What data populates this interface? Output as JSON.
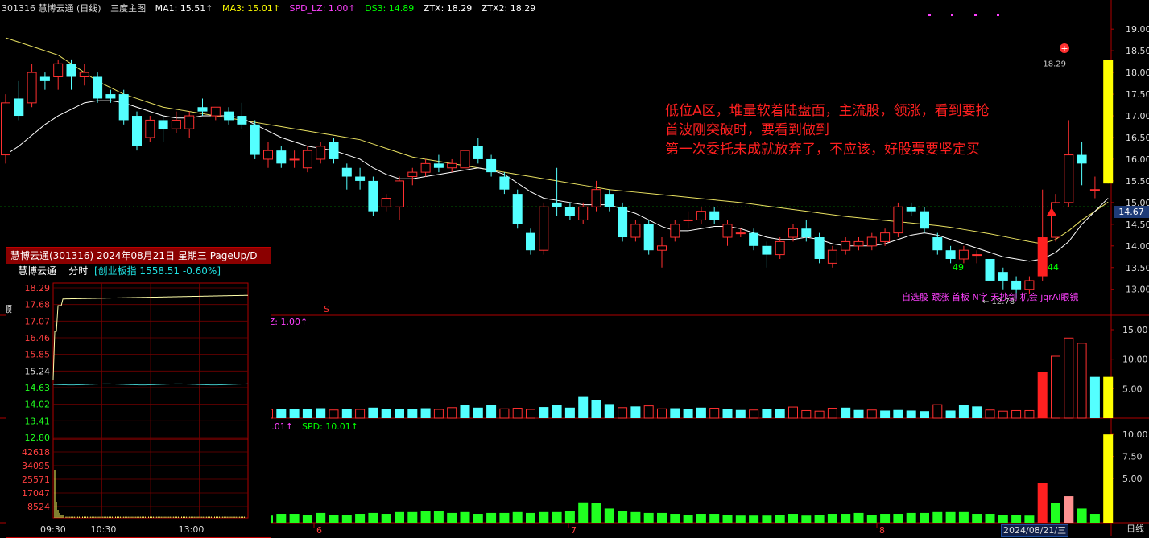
{
  "header": {
    "code_name": "301316 慧博云通 (日线)",
    "main_label": "三度主图",
    "items": [
      {
        "text": "MA1: 15.51↑",
        "color": "#ffffff"
      },
      {
        "text": "MA3: 15.01↑",
        "color": "#ffff00"
      },
      {
        "text": "SPD_LZ: 1.00↑",
        "color": "#ff40ff"
      },
      {
        "text": "DS3: 14.89",
        "color": "#00ff00"
      },
      {
        "text": "ZTX: 18.29",
        "color": "#ffffff"
      },
      {
        "text": "ZTX2: 18.29",
        "color": "#ffffff"
      }
    ]
  },
  "annotation": {
    "lines": [
      "低位A区，堆量软着陆盘面，主流股，领涨，看到要抢",
      "首波刚突破时，要看到做到",
      "第一次委托未成就放弃了，不应该，好股票要坚定买"
    ],
    "color": "#ff2020"
  },
  "price_labels": {
    "high_marker": "18.29",
    "low_marker": "12.78",
    "current": "14.67",
    "count_left": "49",
    "count_right": "44",
    "signal_text": "自选股 跟涨 首板 N字 天抄剑 机会 jqrAI眼镜",
    "s_marker": "S"
  },
  "panel2_label": "SPD_LZ: 1.00↑",
  "panel3_labels": {
    "left": "度: 20.01↑",
    "right": "SPD: 10.01↑"
  },
  "x_axis": {
    "labels": [
      "6",
      "7",
      "8"
    ],
    "current_date": "2024/08/21/三",
    "period": "日线"
  },
  "popup": {
    "title": "慧博云通(301316) 2024年08月21日 星期三 PageUp/D",
    "name": "慧博云通",
    "mode": "分时",
    "index_text": "[创业板指 1558.51 -0.60%]",
    "price_ticks": [
      "18.29",
      "17.68",
      "17.07",
      "16.46",
      "15.85",
      "15.24",
      "14.63",
      "14.02",
      "13.41",
      "12.80"
    ],
    "volume_ticks": [
      "42618",
      "34095",
      "25571",
      "17047",
      "8524"
    ],
    "time_labels": [
      "09:30",
      "10:30",
      "13:00"
    ],
    "side_label": "顺"
  },
  "chart_data": [
    {
      "type": "candlestick",
      "panel": "price",
      "y_ticks": [
        13.0,
        13.5,
        14.0,
        14.5,
        15.0,
        15.5,
        16.0,
        16.5,
        17.0,
        17.5,
        18.0,
        18.5,
        19.0
      ],
      "ylim": [
        12.55,
        19.3
      ],
      "candles": [
        {
          "o": 16.1,
          "c": 17.3,
          "h": 17.5,
          "l": 15.9
        },
        {
          "o": 17.4,
          "c": 17.0,
          "h": 17.8,
          "l": 16.9
        },
        {
          "o": 17.3,
          "c": 18.0,
          "h": 18.2,
          "l": 17.2
        },
        {
          "o": 17.9,
          "c": 17.8,
          "h": 18.0,
          "l": 17.6
        },
        {
          "o": 17.9,
          "c": 18.2,
          "h": 18.3,
          "l": 17.6
        },
        {
          "o": 18.2,
          "c": 17.9,
          "h": 18.3,
          "l": 17.6
        },
        {
          "o": 17.9,
          "c": 18.0,
          "h": 18.2,
          "l": 17.7
        },
        {
          "o": 17.9,
          "c": 17.4,
          "h": 18.0,
          "l": 17.3
        },
        {
          "o": 17.5,
          "c": 17.4,
          "h": 17.6,
          "l": 17.3
        },
        {
          "o": 17.5,
          "c": 16.9,
          "h": 17.6,
          "l": 16.8
        },
        {
          "o": 17.0,
          "c": 16.3,
          "h": 17.1,
          "l": 16.2
        },
        {
          "o": 16.5,
          "c": 16.9,
          "h": 17.0,
          "l": 16.4
        },
        {
          "o": 16.9,
          "c": 16.7,
          "h": 17.0,
          "l": 16.4
        },
        {
          "o": 16.7,
          "c": 16.9,
          "h": 17.1,
          "l": 16.6
        },
        {
          "o": 16.7,
          "c": 17.0,
          "h": 17.1,
          "l": 16.5
        },
        {
          "o": 17.2,
          "c": 17.1,
          "h": 17.4,
          "l": 17.0
        },
        {
          "o": 17.0,
          "c": 17.2,
          "h": 17.2,
          "l": 16.9
        },
        {
          "o": 17.1,
          "c": 16.9,
          "h": 17.2,
          "l": 16.8
        },
        {
          "o": 17.0,
          "c": 16.8,
          "h": 17.3,
          "l": 16.7
        },
        {
          "o": 16.8,
          "c": 16.1,
          "h": 16.9,
          "l": 16.0
        },
        {
          "o": 16.0,
          "c": 16.2,
          "h": 16.4,
          "l": 15.8
        },
        {
          "o": 16.2,
          "c": 15.9,
          "h": 16.3,
          "l": 15.8
        },
        {
          "o": 16.0,
          "c": 16.0,
          "h": 16.2,
          "l": 15.8
        },
        {
          "o": 15.8,
          "c": 16.2,
          "h": 16.3,
          "l": 15.7
        },
        {
          "o": 16.0,
          "c": 16.3,
          "h": 16.4,
          "l": 15.9
        },
        {
          "o": 16.4,
          "c": 16.0,
          "h": 16.5,
          "l": 15.9
        },
        {
          "o": 15.8,
          "c": 15.6,
          "h": 15.9,
          "l": 15.3
        },
        {
          "o": 15.6,
          "c": 15.5,
          "h": 15.8,
          "l": 15.3
        },
        {
          "o": 15.5,
          "c": 14.8,
          "h": 15.6,
          "l": 14.7
        },
        {
          "o": 14.9,
          "c": 15.1,
          "h": 15.2,
          "l": 14.8
        },
        {
          "o": 14.9,
          "c": 15.5,
          "h": 15.6,
          "l": 14.6
        },
        {
          "o": 15.6,
          "c": 15.7,
          "h": 15.8,
          "l": 15.4
        },
        {
          "o": 15.7,
          "c": 15.9,
          "h": 16.0,
          "l": 15.6
        },
        {
          "o": 15.9,
          "c": 15.8,
          "h": 16.1,
          "l": 15.7
        },
        {
          "o": 15.8,
          "c": 15.9,
          "h": 16.0,
          "l": 15.7
        },
        {
          "o": 15.8,
          "c": 16.2,
          "h": 16.4,
          "l": 15.7
        },
        {
          "o": 16.3,
          "c": 16.0,
          "h": 16.5,
          "l": 15.9
        },
        {
          "o": 16.0,
          "c": 15.7,
          "h": 16.1,
          "l": 15.6
        },
        {
          "o": 15.6,
          "c": 15.3,
          "h": 15.7,
          "l": 15.2
        },
        {
          "o": 15.2,
          "c": 14.5,
          "h": 15.3,
          "l": 14.4
        },
        {
          "o": 14.3,
          "c": 13.9,
          "h": 14.4,
          "l": 13.8
        },
        {
          "o": 13.9,
          "c": 14.9,
          "h": 15.0,
          "l": 13.8
        },
        {
          "o": 15.0,
          "c": 14.9,
          "h": 15.8,
          "l": 14.7
        },
        {
          "o": 14.9,
          "c": 14.7,
          "h": 15.0,
          "l": 14.6
        },
        {
          "o": 14.6,
          "c": 14.9,
          "h": 15.0,
          "l": 14.5
        },
        {
          "o": 14.9,
          "c": 15.3,
          "h": 15.5,
          "l": 14.8
        },
        {
          "o": 15.2,
          "c": 14.9,
          "h": 15.3,
          "l": 14.8
        },
        {
          "o": 14.9,
          "c": 14.2,
          "h": 15.0,
          "l": 14.1
        },
        {
          "o": 14.2,
          "c": 14.5,
          "h": 14.6,
          "l": 14.1
        },
        {
          "o": 14.5,
          "c": 13.9,
          "h": 14.6,
          "l": 13.8
        },
        {
          "o": 13.9,
          "c": 14.0,
          "h": 14.2,
          "l": 13.5
        },
        {
          "o": 14.2,
          "c": 14.5,
          "h": 14.6,
          "l": 14.1
        },
        {
          "o": 14.6,
          "c": 14.6,
          "h": 14.8,
          "l": 14.4
        },
        {
          "o": 14.6,
          "c": 14.8,
          "h": 14.9,
          "l": 14.5
        },
        {
          "o": 14.8,
          "c": 14.6,
          "h": 14.9,
          "l": 14.5
        },
        {
          "o": 14.2,
          "c": 14.5,
          "h": 14.6,
          "l": 14.0
        },
        {
          "o": 14.3,
          "c": 14.3,
          "h": 14.4,
          "l": 14.2
        },
        {
          "o": 14.3,
          "c": 14.0,
          "h": 14.4,
          "l": 13.9
        },
        {
          "o": 14.0,
          "c": 13.8,
          "h": 14.1,
          "l": 13.5
        },
        {
          "o": 13.8,
          "c": 14.1,
          "h": 14.2,
          "l": 13.7
        },
        {
          "o": 14.2,
          "c": 14.4,
          "h": 14.5,
          "l": 14.1
        },
        {
          "o": 14.4,
          "c": 14.2,
          "h": 14.6,
          "l": 14.1
        },
        {
          "o": 14.2,
          "c": 13.7,
          "h": 14.3,
          "l": 13.6
        },
        {
          "o": 13.6,
          "c": 13.9,
          "h": 14.0,
          "l": 13.5
        },
        {
          "o": 13.9,
          "c": 14.1,
          "h": 14.2,
          "l": 13.8
        },
        {
          "o": 14.0,
          "c": 14.1,
          "h": 14.2,
          "l": 13.9
        },
        {
          "o": 14.0,
          "c": 14.2,
          "h": 14.3,
          "l": 13.9
        },
        {
          "o": 14.1,
          "c": 14.3,
          "h": 14.4,
          "l": 14.0
        },
        {
          "o": 14.3,
          "c": 14.9,
          "h": 15.0,
          "l": 14.2
        },
        {
          "o": 14.9,
          "c": 14.8,
          "h": 15.0,
          "l": 14.7
        },
        {
          "o": 14.8,
          "c": 14.4,
          "h": 14.9,
          "l": 14.3
        },
        {
          "o": 14.2,
          "c": 13.9,
          "h": 14.3,
          "l": 13.8
        },
        {
          "o": 13.9,
          "c": 13.7,
          "h": 14.0,
          "l": 13.6
        },
        {
          "o": 13.7,
          "c": 13.9,
          "h": 14.0,
          "l": 13.6
        },
        {
          "o": 13.8,
          "c": 13.8,
          "h": 13.9,
          "l": 13.6
        },
        {
          "o": 13.7,
          "c": 13.2,
          "h": 13.8,
          "l": 13.0
        },
        {
          "o": 13.4,
          "c": 13.2,
          "h": 13.5,
          "l": 13.0
        },
        {
          "o": 13.2,
          "c": 13.0,
          "h": 13.3,
          "l": 12.78
        },
        {
          "o": 13.0,
          "c": 13.2,
          "h": 13.3,
          "l": 12.9
        },
        {
          "o": 13.3,
          "c": 14.2,
          "h": 15.3,
          "l": 13.2
        },
        {
          "o": 14.2,
          "c": 15.0,
          "h": 15.2,
          "l": 14.1
        },
        {
          "o": 15.0,
          "c": 16.1,
          "h": 16.9,
          "l": 14.9
        },
        {
          "o": 16.1,
          "c": 15.9,
          "h": 16.4,
          "l": 15.4
        },
        {
          "o": 15.3,
          "c": 15.3,
          "h": 15.6,
          "l": 15.1
        },
        {
          "o": 15.44,
          "c": 18.29,
          "h": 18.29,
          "l": 15.44
        }
      ],
      "ma1": [
        16.1,
        16.3,
        16.55,
        16.8,
        17.0,
        17.15,
        17.3,
        17.35,
        17.35,
        17.3,
        17.2,
        17.1,
        17.0,
        16.95,
        16.95,
        17.0,
        17.0,
        17.0,
        16.95,
        16.8,
        16.65,
        16.5,
        16.4,
        16.3,
        16.25,
        16.2,
        16.1,
        16.0,
        15.8,
        15.65,
        15.55,
        15.55,
        15.6,
        15.65,
        15.7,
        15.75,
        15.8,
        15.75,
        15.65,
        15.45,
        15.25,
        15.1,
        15.05,
        15.0,
        14.95,
        14.95,
        14.95,
        14.85,
        14.75,
        14.6,
        14.45,
        14.35,
        14.35,
        14.4,
        14.45,
        14.45,
        14.4,
        14.3,
        14.2,
        14.15,
        14.15,
        14.2,
        14.15,
        14.05,
        14.0,
        14.0,
        14.0,
        14.05,
        14.15,
        14.25,
        14.3,
        14.25,
        14.15,
        14.05,
        13.95,
        13.85,
        13.75,
        13.7,
        13.65,
        13.7,
        13.85,
        14.1,
        14.5,
        14.8,
        15.1
      ],
      "ma3": [
        18.8,
        18.7,
        18.6,
        18.5,
        18.4,
        18.2,
        18.0,
        17.8,
        17.65,
        17.5,
        17.4,
        17.3,
        17.2,
        17.15,
        17.1,
        17.05,
        17.0,
        16.95,
        16.9,
        16.85,
        16.8,
        16.75,
        16.7,
        16.65,
        16.6,
        16.55,
        16.5,
        16.45,
        16.35,
        16.25,
        16.15,
        16.05,
        16.0,
        15.95,
        15.9,
        15.85,
        15.8,
        15.75,
        15.7,
        15.65,
        15.6,
        15.55,
        15.5,
        15.45,
        15.4,
        15.35,
        15.3,
        15.27,
        15.24,
        15.21,
        15.18,
        15.15,
        15.12,
        15.09,
        15.06,
        15.03,
        15.0,
        14.96,
        14.92,
        14.88,
        14.84,
        14.8,
        14.76,
        14.72,
        14.68,
        14.65,
        14.62,
        14.59,
        14.56,
        14.53,
        14.5,
        14.47,
        14.43,
        14.38,
        14.33,
        14.28,
        14.22,
        14.16,
        14.1,
        14.05,
        14.15,
        14.35,
        14.6,
        14.8,
        15.01
      ]
    },
    {
      "type": "bar",
      "panel": "volume",
      "y_ticks": [
        5.0,
        10.0,
        15.0
      ],
      "ylim": [
        0,
        16.5
      ],
      "values_last_days": [
        1.3,
        1.2,
        1.5,
        1.6,
        1.5,
        1.5,
        1.7,
        1.4,
        1.6,
        1.5,
        1.8,
        1.6,
        1.5,
        1.6,
        1.7,
        1.5,
        1.8,
        2.2,
        1.8,
        2.3,
        1.6,
        1.7,
        1.5,
        1.9,
        2.2,
        1.8,
        3.6,
        3.0,
        2.4,
        1.8,
        2.0,
        2.1,
        1.6,
        1.7,
        1.5,
        1.8,
        1.7,
        1.6,
        1.4,
        1.4,
        1.6,
        1.5,
        1.9,
        1.3,
        1.2,
        1.7,
        1.8,
        1.4,
        1.4,
        1.3,
        1.4,
        1.3,
        1.2,
        2.3,
        1.3,
        2.3,
        2.0,
        1.4,
        1.2,
        1.3,
        1.3,
        7.8,
        10.5,
        13.6,
        12.7,
        7.0,
        7.0
      ],
      "up_flags": [
        1,
        1,
        1,
        0,
        0,
        0,
        0,
        1,
        0,
        1,
        0,
        0,
        0,
        0,
        0,
        1,
        1,
        0,
        0,
        0,
        1,
        1,
        1,
        0,
        0,
        0,
        0,
        0,
        0,
        1,
        0,
        1,
        1,
        0,
        0,
        0,
        1,
        0,
        0,
        1,
        0,
        0,
        1,
        1,
        1,
        1,
        0,
        0,
        1,
        0,
        0,
        0,
        0,
        1,
        0,
        0,
        0,
        1,
        1,
        1,
        1,
        1,
        1,
        1,
        1,
        0,
        0
      ]
    },
    {
      "type": "bar",
      "panel": "spd",
      "y_ticks": [
        5.0,
        7.5,
        10.0
      ],
      "ylim": [
        0,
        11.2
      ],
      "values_last_days": [
        0.7,
        0.9,
        0.8,
        1.0,
        1.0,
        0.9,
        1.1,
        0.9,
        0.9,
        1.0,
        1.1,
        1.0,
        1.2,
        1.2,
        1.3,
        1.3,
        1.1,
        1.2,
        1.0,
        1.1,
        1.1,
        1.2,
        1.1,
        1.2,
        1.2,
        1.3,
        2.3,
        2.2,
        1.6,
        1.3,
        1.2,
        1.1,
        1.1,
        1.0,
        0.9,
        1.0,
        1.0,
        0.9,
        0.8,
        0.8,
        0.8,
        0.9,
        1.0,
        0.8,
        0.9,
        1.0,
        1.0,
        1.1,
        0.9,
        1.0,
        1.0,
        1.1,
        1.1,
        1.2,
        1.2,
        1.2,
        1.0,
        1.0,
        0.9,
        0.9,
        0.8,
        4.5,
        2.2,
        3.0,
        1.6,
        1.0,
        10.0
      ],
      "colors": [
        "lime",
        "lime",
        "lime",
        "lime",
        "lime",
        "lime",
        "lime",
        "lime",
        "lime",
        "lime",
        "lime",
        "lime",
        "lime",
        "lime",
        "lime",
        "lime",
        "lime",
        "lime",
        "lime",
        "lime",
        "lime",
        "lime",
        "lime",
        "lime",
        "lime",
        "lime",
        "lime",
        "lime",
        "lime",
        "lime",
        "lime",
        "lime",
        "lime",
        "lime",
        "lime",
        "lime",
        "lime",
        "lime",
        "lime",
        "lime",
        "lime",
        "lime",
        "lime",
        "lime",
        "lime",
        "lime",
        "lime",
        "lime",
        "lime",
        "lime",
        "lime",
        "lime",
        "lime",
        "lime",
        "lime",
        "lime",
        "lime",
        "lime",
        "lime",
        "lime",
        "lime",
        "red",
        "lime",
        "pink",
        "lime",
        "lime",
        "yellow"
      ]
    }
  ]
}
